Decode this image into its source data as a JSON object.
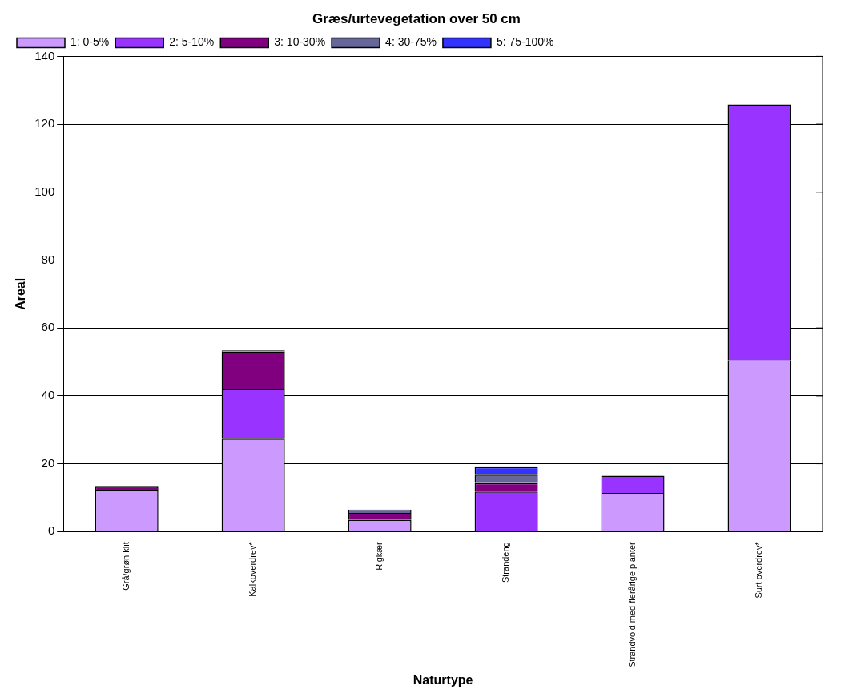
{
  "chart_data": {
    "type": "bar",
    "title": "Græs/urtevegetation over 50 cm",
    "xlabel": "Naturtype",
    "ylabel": "Areal",
    "categories": [
      "Grå/grøn klit",
      "Kalkoverdrev*",
      "Rigkær",
      "Strandeng",
      "Strandvold med flerårige planter",
      "Surt overdrev*"
    ],
    "stacked": true,
    "ylim": [
      0,
      140
    ],
    "yticks": [
      0,
      20,
      40,
      60,
      80,
      100,
      120,
      140
    ],
    "grid": "y",
    "legend": "top",
    "series": [
      {
        "name": "1: 0-5%",
        "color": "#cc99ff",
        "values": [
          12.2,
          27.4,
          3.4,
          null,
          11.4,
          50.4
        ]
      },
      {
        "name": "2: 5-10%",
        "color": "#9933ff",
        "values": [
          null,
          14.6,
          null,
          11.8,
          5.1,
          75.4
        ]
      },
      {
        "name": "3: 10-30%",
        "color": "#800080",
        "values": [
          1.0,
          11.0,
          2.1,
          2.5,
          null,
          null
        ]
      },
      {
        "name": "4: 30-75%",
        "color": "#666699",
        "values": [
          null,
          0.4,
          1.0,
          2.5,
          null,
          null
        ]
      },
      {
        "name": "5: 75-100%",
        "color": "#3333ff",
        "values": [
          null,
          null,
          null,
          2.2,
          null,
          null
        ]
      }
    ]
  }
}
